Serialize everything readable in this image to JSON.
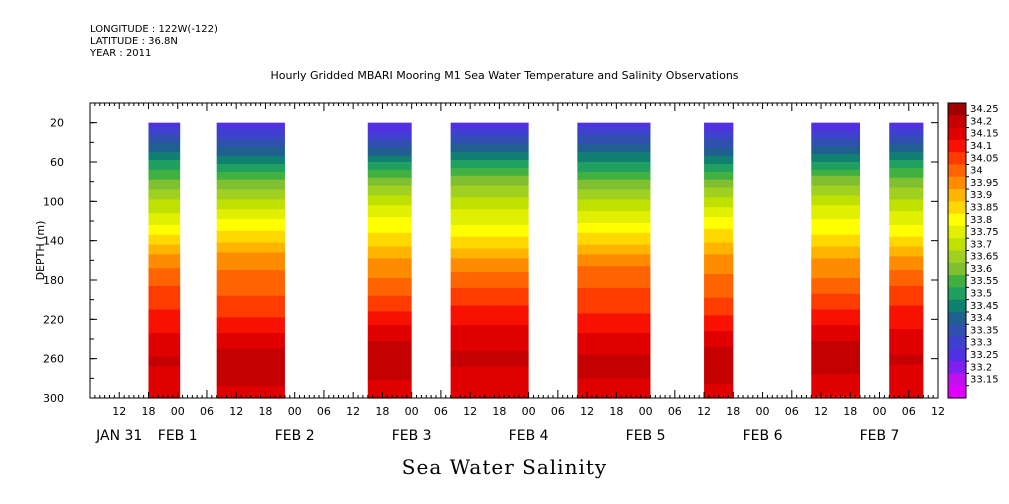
{
  "header": {
    "longitude": "LONGITUDE : 122W(-122)",
    "latitude": "LATITUDE : 36.8N",
    "year": "YEAR : 2011"
  },
  "chart_title": "Hourly Gridded MBARI Mooring M1 Sea Water Temperature and Salinity Observations",
  "bottom_title": "Sea Water Salinity",
  "chart_data": {
    "type": "heatmap",
    "title": "Hourly Gridded MBARI Mooring M1 Sea Water Temperature and Salinity Observations",
    "variable": "Sea Water Salinity",
    "ylabel": "DEPTH (m)",
    "ylim": [
      300,
      0
    ],
    "yticks": [
      20,
      60,
      100,
      140,
      180,
      220,
      260,
      300
    ],
    "x_range_hours": [
      0,
      174
    ],
    "hour_ticks": [
      "12",
      "18",
      "00",
      "06",
      "12",
      "18",
      "00",
      "06",
      "12",
      "18",
      "00",
      "06",
      "12",
      "18",
      "00",
      "06",
      "12",
      "18",
      "00",
      "06",
      "12",
      "18",
      "00",
      "06",
      "12",
      "18",
      "00",
      "06",
      "12",
      "18",
      "00",
      "06",
      "12",
      "18",
      "00",
      "06"
    ],
    "date_labels": [
      "JAN 31",
      "FEB  1",
      "FEB  2",
      "FEB  3",
      "FEB  4",
      "FEB  5",
      "FEB  6",
      "FEB  7"
    ],
    "colorbar_levels": [
      "34.25",
      "34.2",
      "34.15",
      "34.1",
      "34.05",
      "34",
      "33.95",
      "33.9",
      "33.85",
      "33.8",
      "33.75",
      "33.7",
      "33.65",
      "33.6",
      "33.55",
      "33.5",
      "33.45",
      "33.4",
      "33.35",
      "33.3",
      "33.25",
      "33.2",
      "33.15"
    ],
    "colorbar_colors": [
      "#a00000",
      "#c40000",
      "#e00000",
      "#f81000",
      "#ff3c00",
      "#ff6400",
      "#ff8c00",
      "#ffb400",
      "#ffd800",
      "#ffff00",
      "#e0f000",
      "#c0e000",
      "#a0d020",
      "#80c030",
      "#40b040",
      "#20a060",
      "#108070",
      "#206090",
      "#3050b0",
      "#4040d0",
      "#5030e0",
      "#8020f0",
      "#c010f0",
      "#e000ff"
    ],
    "data_segments_hours": [
      [
        12,
        18.5
      ],
      [
        26,
        40
      ],
      [
        57,
        66
      ],
      [
        74,
        90
      ],
      [
        100,
        115
      ],
      [
        126,
        132
      ],
      [
        148,
        158
      ],
      [
        164,
        171
      ]
    ],
    "profile_depth_m": [
      20,
      40,
      60,
      80,
      100,
      120,
      140,
      160,
      180,
      200,
      220,
      240,
      260,
      280,
      300
    ],
    "profile_salinity": [
      33.26,
      33.38,
      33.5,
      33.62,
      33.72,
      33.8,
      33.88,
      33.97,
      34.02,
      34.07,
      34.12,
      34.18,
      34.22,
      34.2,
      34.16
    ]
  }
}
